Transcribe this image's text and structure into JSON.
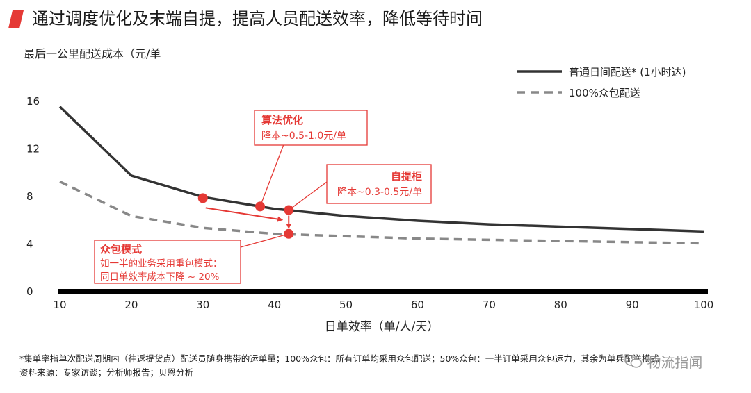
{
  "title": "通过调度优化及末端自提，提高人员配送效率，降低等待时间",
  "chart_data": {
    "type": "line",
    "ylabel": "最后一公里配送成本（元/单",
    "xlabel": "日单效率（单/人/天）",
    "x": [
      10,
      20,
      30,
      40,
      50,
      60,
      70,
      80,
      90,
      100
    ],
    "xlim": [
      10,
      100
    ],
    "ylim": [
      0,
      16
    ],
    "yticks": [
      0,
      4,
      8,
      12,
      16
    ],
    "grid": false,
    "legend_position": "top-right",
    "series": [
      {
        "name": "普通日间配送* (1小时达)",
        "style": "solid",
        "color": "#333333",
        "points": [
          [
            10,
            15.5
          ],
          [
            20,
            9.7
          ],
          [
            30,
            7.9
          ],
          [
            40,
            6.9
          ],
          [
            50,
            6.3
          ],
          [
            60,
            5.9
          ],
          [
            70,
            5.6
          ],
          [
            80,
            5.4
          ],
          [
            90,
            5.2
          ],
          [
            100,
            5.0
          ]
        ]
      },
      {
        "name": "100%众包配送",
        "style": "dashed",
        "color": "#888888",
        "points": [
          [
            10,
            9.2
          ],
          [
            20,
            6.3
          ],
          [
            30,
            5.3
          ],
          [
            40,
            4.8
          ],
          [
            50,
            4.6
          ],
          [
            60,
            4.4
          ],
          [
            70,
            4.3
          ],
          [
            80,
            4.2
          ],
          [
            90,
            4.1
          ],
          [
            100,
            4.0
          ]
        ]
      }
    ],
    "markers": [
      {
        "x": 30,
        "y": 7.8
      },
      {
        "x": 38,
        "y": 7.1
      },
      {
        "x": 42,
        "y": 6.8
      },
      {
        "x": 42,
        "y": 4.8
      }
    ],
    "annotations": [
      {
        "title": "算法优化",
        "text": "降本~0.5-1.0元/单"
      },
      {
        "title": "自提柜",
        "text": "降本~0.3-0.5元/单"
      },
      {
        "title": "众包模式",
        "lines": [
          "如一半的业务采用重包模式：",
          "同日单效率成本下降 ~ 20%"
        ]
      }
    ],
    "accent_color": "#e53935"
  },
  "footnotes": [
    "*集单率指单次配送周期内（往返提货点）配送员随身携带的运单量；100%众包：所有订单均采用众包配送；50%众包：一半订单采用众包运力，其余为单兵配送模式",
    "资料来源：专家访谈；分析师报告；贝恩分析"
  ],
  "watermark": "物流指闻"
}
